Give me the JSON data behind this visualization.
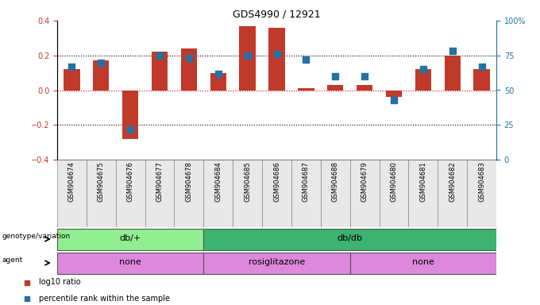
{
  "title": "GDS4990 / 12921",
  "samples": [
    "GSM904674",
    "GSM904675",
    "GSM904676",
    "GSM904677",
    "GSM904678",
    "GSM904684",
    "GSM904685",
    "GSM904686",
    "GSM904687",
    "GSM904688",
    "GSM904679",
    "GSM904680",
    "GSM904681",
    "GSM904682",
    "GSM904683"
  ],
  "log10_ratio": [
    0.12,
    0.17,
    -0.28,
    0.22,
    0.24,
    0.1,
    0.37,
    0.36,
    0.01,
    0.03,
    0.03,
    -0.04,
    0.12,
    0.2,
    0.12
  ],
  "percentile": [
    67,
    70,
    22,
    75,
    73,
    62,
    75,
    76,
    72,
    60,
    60,
    43,
    65,
    78,
    67
  ],
  "bar_color": "#c0392b",
  "dot_color": "#2471a3",
  "ylim": [
    -0.4,
    0.4
  ],
  "y2lim": [
    0,
    100
  ],
  "yticks": [
    -0.4,
    -0.2,
    0.0,
    0.2,
    0.4
  ],
  "y2ticks": [
    0,
    25,
    50,
    75,
    100
  ],
  "genotype_groups": [
    {
      "label": "db/+",
      "start": 0,
      "end": 4,
      "color": "#90ee90"
    },
    {
      "label": "db/db",
      "start": 5,
      "end": 14,
      "color": "#3cb371"
    }
  ],
  "agent_groups": [
    {
      "label": "none",
      "start": 0,
      "end": 4,
      "color": "#dd88dd"
    },
    {
      "label": "rosiglitazone",
      "start": 5,
      "end": 9,
      "color": "#dd88dd"
    },
    {
      "label": "none",
      "start": 10,
      "end": 14,
      "color": "#dd88dd"
    }
  ],
  "genotype_label": "genotype/variation",
  "agent_label": "agent",
  "bar_width": 0.55,
  "dot_size": 28,
  "background_color": "#ffffff",
  "tick_color_left": "#c0392b",
  "tick_color_right": "#2471a3"
}
